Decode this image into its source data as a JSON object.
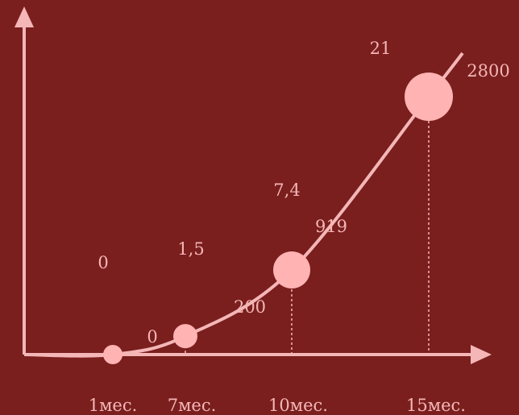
{
  "chart_data": {
    "type": "line",
    "categories": [
      "1мес.",
      "7мес.",
      "10мес.",
      "15мес."
    ],
    "series": [
      {
        "values": [
          0,
          200,
          919,
          2800
        ]
      },
      {
        "values": [
          0,
          1.5,
          7.4,
          21
        ]
      }
    ],
    "value_labels": [
      "",
      "200",
      "919",
      "2800"
    ],
    "upper_labels": [
      "0",
      "1,5",
      "7,4",
      "21"
    ],
    "origin_label": "0",
    "title": "",
    "xlabel": "",
    "ylabel": "",
    "grid": false,
    "legend": "none",
    "colors": {
      "background": "#7a1e1e",
      "accent": "#f4b6b6",
      "marker": "#ffb3b3"
    }
  }
}
